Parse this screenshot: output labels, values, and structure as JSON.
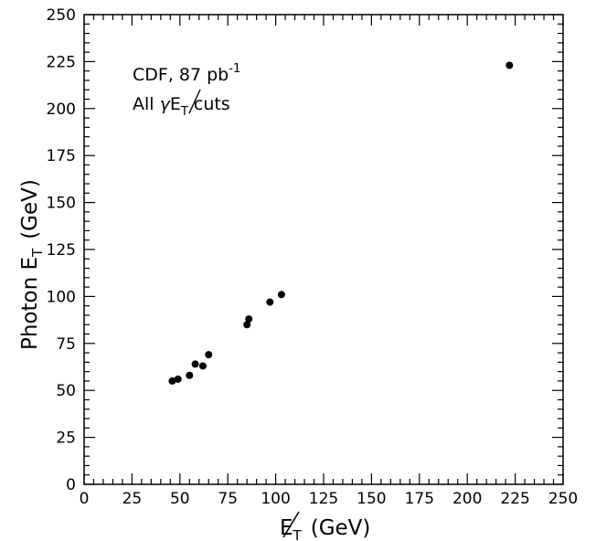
{
  "chart_data": {
    "type": "scatter",
    "xlabel_symbol": "E",
    "xlabel_subscript": "T",
    "xlabel_units": "(GeV)",
    "ylabel_main": "Photon E",
    "ylabel_subscript": "T",
    "ylabel_units": "(GeV)",
    "xlim": [
      0,
      250
    ],
    "ylim": [
      0,
      250
    ],
    "xticks": [
      0,
      25,
      50,
      75,
      100,
      125,
      150,
      175,
      200,
      225,
      250
    ],
    "yticks": [
      0,
      25,
      50,
      75,
      100,
      125,
      150,
      175,
      200,
      225,
      250
    ],
    "annotations": {
      "line1_text": "CDF, 87 pb",
      "line1_superscript": "-1",
      "line2_prefix": "All ",
      "line2_gamma": "γ",
      "line2_met": "E",
      "line2_met_sub": "T",
      "line2_suffix": " cuts"
    },
    "points": [
      {
        "x": 46,
        "y": 55
      },
      {
        "x": 49,
        "y": 56
      },
      {
        "x": 55,
        "y": 58
      },
      {
        "x": 58,
        "y": 64
      },
      {
        "x": 62,
        "y": 63
      },
      {
        "x": 65,
        "y": 69
      },
      {
        "x": 85,
        "y": 85
      },
      {
        "x": 86,
        "y": 88
      },
      {
        "x": 97,
        "y": 97
      },
      {
        "x": 103,
        "y": 101
      },
      {
        "x": 222,
        "y": 223
      }
    ],
    "marker_color": "#000000",
    "grid": false
  }
}
